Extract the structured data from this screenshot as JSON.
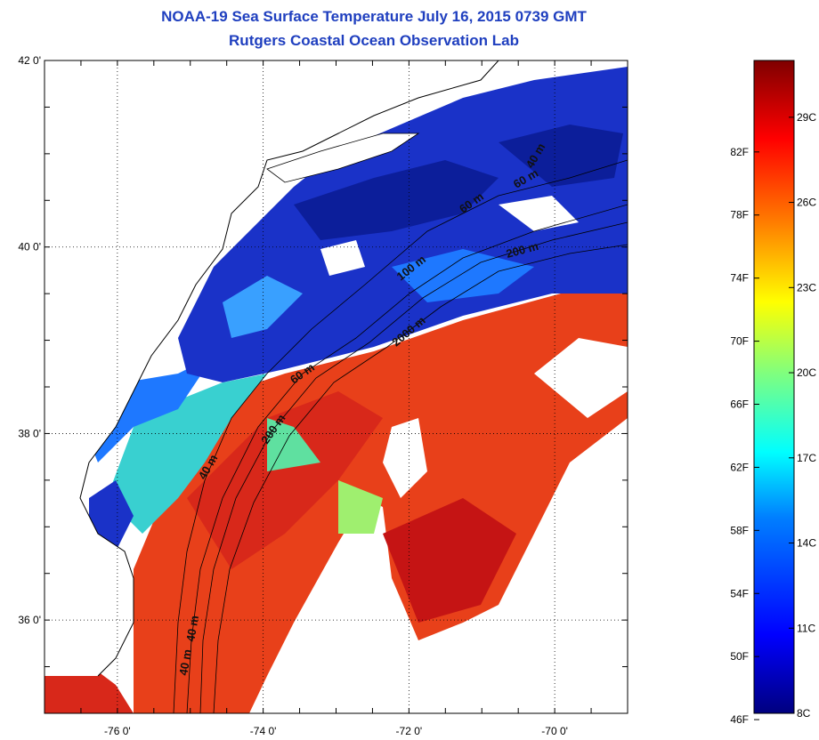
{
  "header": {
    "title": "NOAA-19 Sea Surface Temperature July 16, 2015 0739 GMT",
    "subtitle": "Rutgers Coastal Ocean Observation Lab"
  },
  "map": {
    "lat_range": [
      35,
      42
    ],
    "lon_range": [
      -77,
      -69
    ],
    "lat_ticks": [
      {
        "value": 42,
        "label": "42 0'"
      },
      {
        "value": 40,
        "label": "40 0'"
      },
      {
        "value": 38,
        "label": "38 0'"
      },
      {
        "value": 36,
        "label": "36 0'"
      }
    ],
    "lon_ticks": [
      {
        "value": -76,
        "label": "-76 0'"
      },
      {
        "value": -74,
        "label": "-74 0'"
      },
      {
        "value": -72,
        "label": "-72 0'"
      },
      {
        "value": -70,
        "label": "-70 0'"
      }
    ],
    "contour_labels": [
      "40 m",
      "40 m",
      "60 m",
      "100 m",
      "200 m",
      "2000 m",
      "60 m",
      "60 m",
      "40 m",
      "200 m",
      "40 m"
    ]
  },
  "colorbar": {
    "range_c": [
      8,
      31
    ],
    "fahrenheit_labels": [
      "82F",
      "78F",
      "74F",
      "70F",
      "66F",
      "62F",
      "58F",
      "54F",
      "50F",
      "46F"
    ],
    "celsius_labels": [
      "29C",
      "26C",
      "23C",
      "20C",
      "17C",
      "14C",
      "11C",
      "8C"
    ],
    "colors": [
      "#00007f",
      "#0000ff",
      "#007fff",
      "#00ffff",
      "#7fff7f",
      "#ffff00",
      "#ff7f00",
      "#ff0000",
      "#7f0000"
    ]
  },
  "colors": {
    "title": "#1f3fbf",
    "land": "#ffffff",
    "cold": "#1a32c8",
    "warm": "#e8401a"
  }
}
